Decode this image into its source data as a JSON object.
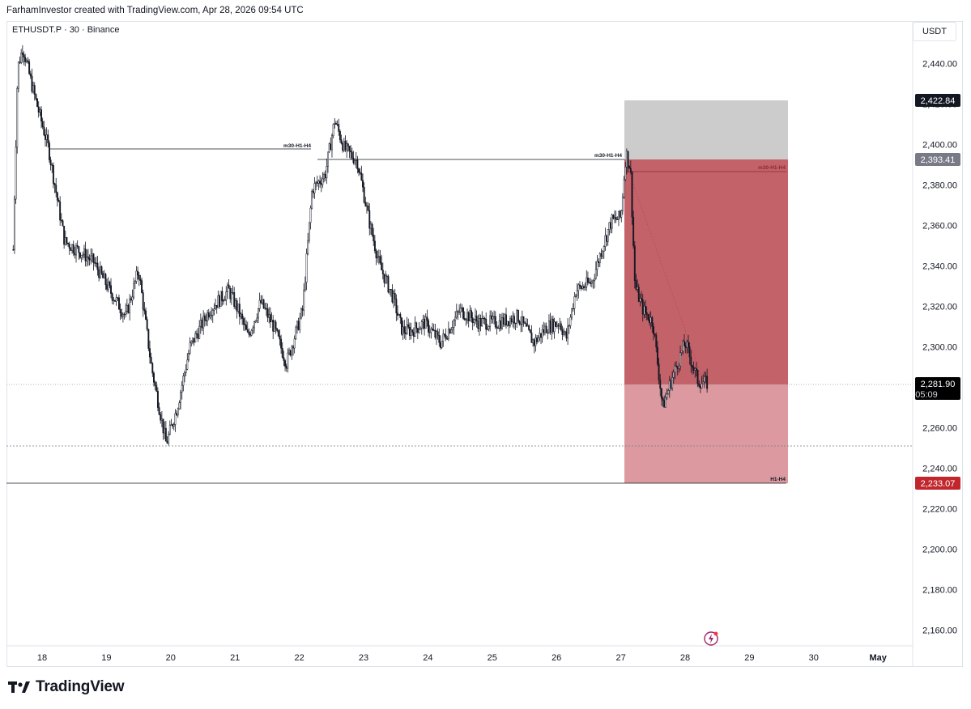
{
  "header": {
    "attribution": "FarhamInvestor created with TradingView.com, Apr 28, 2026 09:54 UTC"
  },
  "chart": {
    "symbol_title": "ETHUSDT.P · 30 · Binance",
    "currency": "USDT",
    "colors": {
      "candle": "#131722",
      "loss_zone": "#c4626a",
      "loss_zone_light": "#dc9aa0",
      "stop_zone": "#cccccc",
      "price_label_bg": "#131722",
      "stop_label_bg": "#787b86",
      "target_label_bg": "#c1262d"
    },
    "position": {
      "top_price_label": "2,422.84",
      "entry_price_label": "2,393.41",
      "target_price_label": "2,233.07"
    },
    "current_price": {
      "price": "2,281.90",
      "countdown": "05:09"
    },
    "annotations": {
      "line1": "m30-H1-H4",
      "line2": "m30-H1-H4",
      "line3": "m30-H1-H4",
      "line4": "H1-H4"
    }
  },
  "chart_data": {
    "type": "candlestick",
    "title": "ETHUSDT.P · 30 · Binance",
    "x_labels": [
      "18",
      "19",
      "20",
      "21",
      "22",
      "23",
      "24",
      "25",
      "26",
      "27",
      "28",
      "29",
      "30",
      "May"
    ],
    "y_ticks": [
      "2,440.00",
      "2,420.00",
      "2,400.00",
      "2,380.00",
      "2,360.00",
      "2,340.00",
      "2,320.00",
      "2,300.00",
      "2,280.00",
      "2,260.00",
      "2,240.00",
      "2,220.00",
      "2,200.00",
      "2,180.00",
      "2,160.00"
    ],
    "ylim": [
      2152,
      2464
    ],
    "keypoints": [
      {
        "day": 17.55,
        "price": 2348
      },
      {
        "day": 17.62,
        "price": 2438
      },
      {
        "day": 17.7,
        "price": 2448
      },
      {
        "day": 17.85,
        "price": 2428
      },
      {
        "day": 18.05,
        "price": 2404
      },
      {
        "day": 18.1,
        "price": 2398
      },
      {
        "day": 18.35,
        "price": 2352
      },
      {
        "day": 18.55,
        "price": 2348
      },
      {
        "day": 18.8,
        "price": 2342
      },
      {
        "day": 19.05,
        "price": 2328
      },
      {
        "day": 19.3,
        "price": 2315
      },
      {
        "day": 19.5,
        "price": 2338
      },
      {
        "day": 19.7,
        "price": 2290
      },
      {
        "day": 19.93,
        "price": 2252
      },
      {
        "day": 20.1,
        "price": 2270
      },
      {
        "day": 20.3,
        "price": 2300
      },
      {
        "day": 20.6,
        "price": 2318
      },
      {
        "day": 20.9,
        "price": 2328
      },
      {
        "day": 21.05,
        "price": 2318
      },
      {
        "day": 21.2,
        "price": 2305
      },
      {
        "day": 21.4,
        "price": 2322
      },
      {
        "day": 21.6,
        "price": 2310
      },
      {
        "day": 21.8,
        "price": 2292
      },
      {
        "day": 22.05,
        "price": 2318
      },
      {
        "day": 22.2,
        "price": 2378
      },
      {
        "day": 22.4,
        "price": 2385
      },
      {
        "day": 22.55,
        "price": 2412
      },
      {
        "day": 22.7,
        "price": 2398
      },
      {
        "day": 22.9,
        "price": 2392
      },
      {
        "day": 23.1,
        "price": 2360
      },
      {
        "day": 23.25,
        "price": 2340
      },
      {
        "day": 23.45,
        "price": 2325
      },
      {
        "day": 23.6,
        "price": 2308
      },
      {
        "day": 23.75,
        "price": 2308
      },
      {
        "day": 23.95,
        "price": 2312
      },
      {
        "day": 24.2,
        "price": 2302
      },
      {
        "day": 24.5,
        "price": 2318
      },
      {
        "day": 24.8,
        "price": 2312
      },
      {
        "day": 25.1,
        "price": 2312
      },
      {
        "day": 25.4,
        "price": 2315
      },
      {
        "day": 25.65,
        "price": 2302
      },
      {
        "day": 25.85,
        "price": 2310
      },
      {
        "day": 26.05,
        "price": 2312
      },
      {
        "day": 26.15,
        "price": 2304
      },
      {
        "day": 26.3,
        "price": 2328
      },
      {
        "day": 26.55,
        "price": 2332
      },
      {
        "day": 26.7,
        "price": 2348
      },
      {
        "day": 26.85,
        "price": 2362
      },
      {
        "day": 27.0,
        "price": 2364
      },
      {
        "day": 27.08,
        "price": 2396
      },
      {
        "day": 27.15,
        "price": 2388
      },
      {
        "day": 27.22,
        "price": 2330
      },
      {
        "day": 27.35,
        "price": 2318
      },
      {
        "day": 27.5,
        "price": 2312
      },
      {
        "day": 27.65,
        "price": 2270
      },
      {
        "day": 27.8,
        "price": 2285
      },
      {
        "day": 28.0,
        "price": 2302
      },
      {
        "day": 28.2,
        "price": 2283
      },
      {
        "day": 28.35,
        "price": 2281.9
      }
    ]
  }
}
